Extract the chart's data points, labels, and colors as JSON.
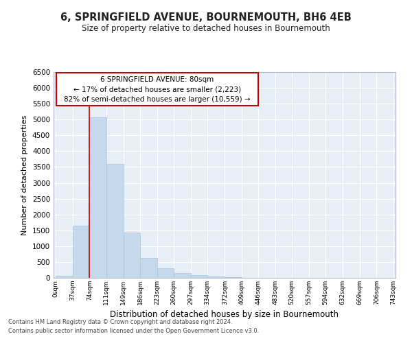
{
  "title": "6, SPRINGFIELD AVENUE, BOURNEMOUTH, BH6 4EB",
  "subtitle": "Size of property relative to detached houses in Bournemouth",
  "xlabel": "Distribution of detached houses by size in Bournemouth",
  "ylabel": "Number of detached properties",
  "bar_color": "#c5d8ec",
  "bar_edge_color": "#a8c4de",
  "bin_edges": [
    0,
    37,
    74,
    111,
    149,
    186,
    223,
    260,
    297,
    334,
    372,
    409,
    446,
    483,
    520,
    557,
    594,
    632,
    669,
    706,
    743
  ],
  "bar_heights": [
    55,
    1650,
    5080,
    3600,
    1420,
    620,
    310,
    145,
    85,
    45,
    20,
    5,
    3,
    0,
    0,
    0,
    0,
    0,
    0,
    0
  ],
  "property_line_x": 74,
  "property_line_color": "#cc0000",
  "ylim": [
    0,
    6500
  ],
  "yticks": [
    0,
    500,
    1000,
    1500,
    2000,
    2500,
    3000,
    3500,
    4000,
    4500,
    5000,
    5500,
    6000,
    6500
  ],
  "annotation_title": "6 SPRINGFIELD AVENUE: 80sqm",
  "annotation_line1": "← 17% of detached houses are smaller (2,223)",
  "annotation_line2": "82% of semi-detached houses are larger (10,559) →",
  "footer_line1": "Contains HM Land Registry data © Crown copyright and database right 2024.",
  "footer_line2": "Contains public sector information licensed under the Open Government Licence v3.0.",
  "tick_labels": [
    "0sqm",
    "37sqm",
    "74sqm",
    "111sqm",
    "149sqm",
    "186sqm",
    "223sqm",
    "260sqm",
    "297sqm",
    "334sqm",
    "372sqm",
    "409sqm",
    "446sqm",
    "483sqm",
    "520sqm",
    "557sqm",
    "594sqm",
    "632sqm",
    "669sqm",
    "706sqm",
    "743sqm"
  ],
  "background_color": "#ffffff",
  "plot_bg_color": "#e8eef5",
  "grid_color": "#ffffff"
}
